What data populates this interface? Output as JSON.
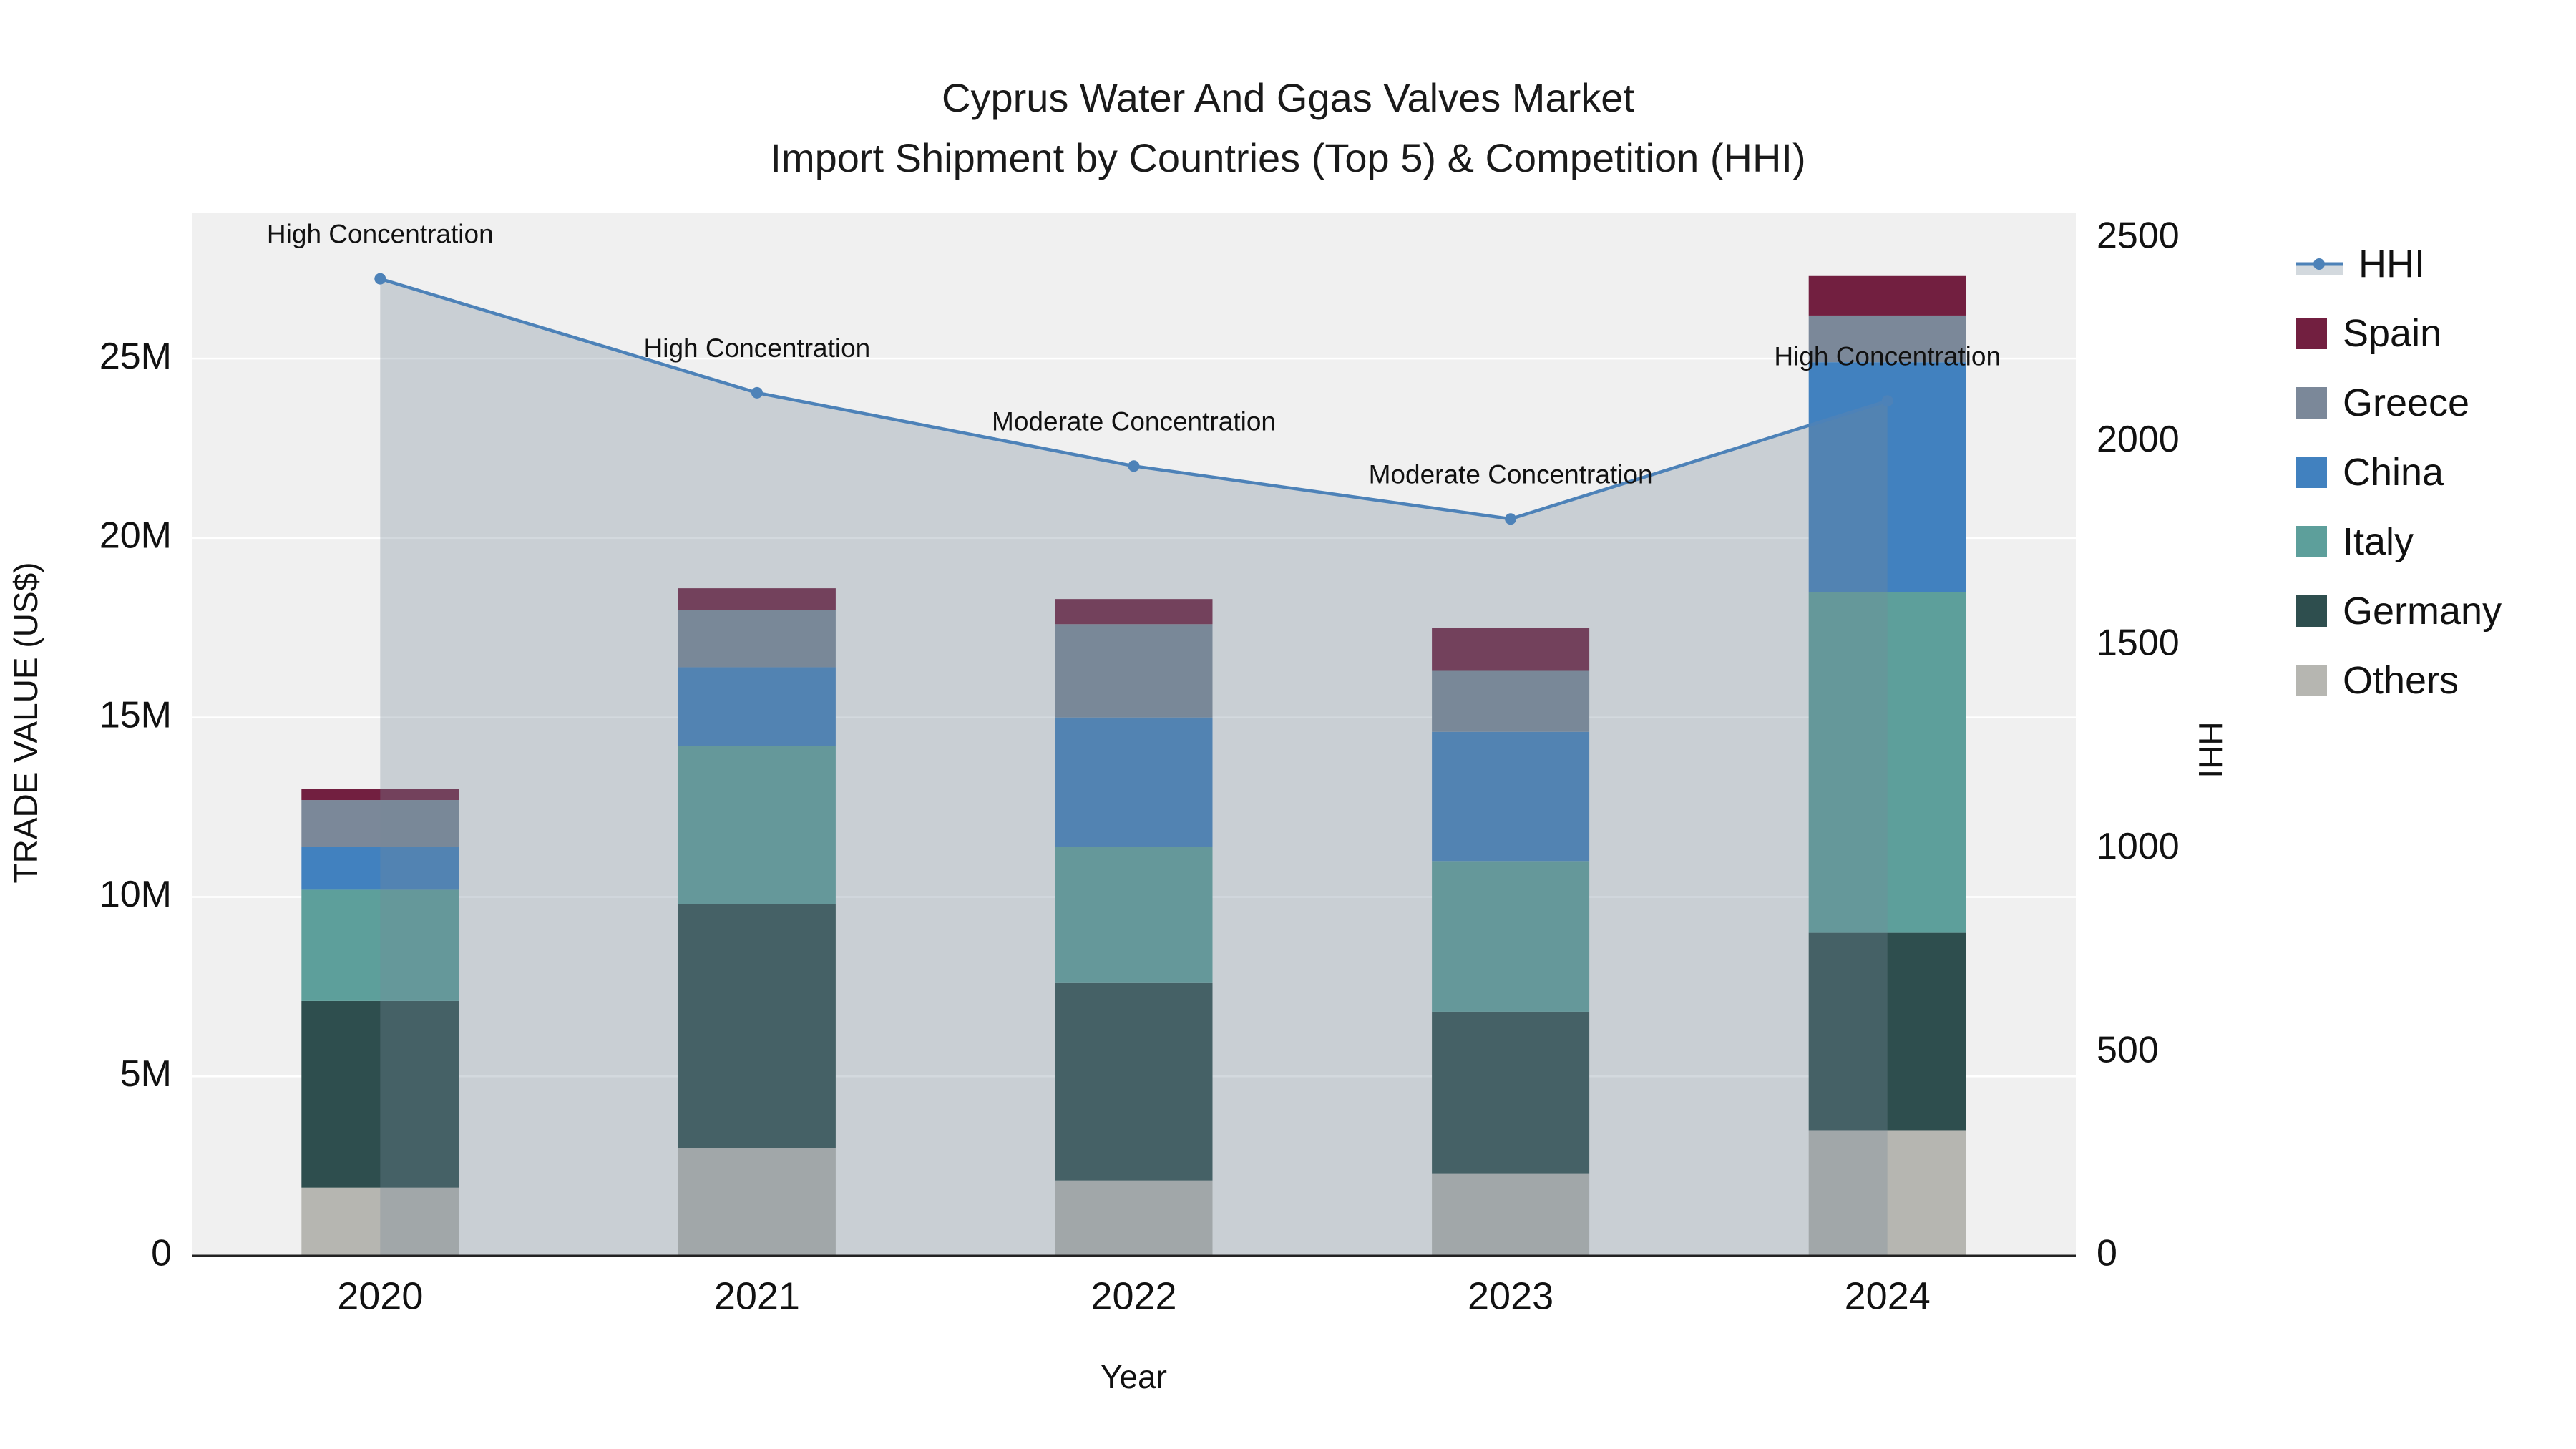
{
  "chart_data": {
    "type": "bar+line",
    "title_line1": "Cyprus Water And Ggas Valves Market",
    "title_line2": "Import Shipment by Countries (Top 5) & Competition (HHI)",
    "xlabel": "Year",
    "ylabel_left": "TRADE VALUE (US$)",
    "ylabel_right": "HHI",
    "categories": [
      "2020",
      "2021",
      "2022",
      "2023",
      "2024"
    ],
    "bar_unit": "millions US$",
    "bar_series": [
      {
        "name": "Others",
        "color": "#b6b6b1",
        "values": [
          1.9,
          3.0,
          2.1,
          2.3,
          3.5
        ]
      },
      {
        "name": "Germany",
        "color": "#2e4e4e",
        "values": [
          5.2,
          6.8,
          5.5,
          4.5,
          5.5
        ]
      },
      {
        "name": "Italy",
        "color": "#5d9f9b",
        "values": [
          3.1,
          4.4,
          3.8,
          4.2,
          9.5
        ]
      },
      {
        "name": "China",
        "color": "#4181bf",
        "values": [
          1.2,
          2.2,
          3.6,
          3.6,
          6.4
        ]
      },
      {
        "name": "Greece",
        "color": "#7b8899",
        "values": [
          1.3,
          1.6,
          2.6,
          1.7,
          1.3
        ]
      },
      {
        "name": "Spain",
        "color": "#721f40",
        "values": [
          0.3,
          0.6,
          0.7,
          1.2,
          1.1
        ]
      }
    ],
    "line_series": {
      "name": "HHI",
      "color": "#4d82b8",
      "fill": "rgba(119,136,153,0.32)",
      "values": [
        2400,
        2120,
        1940,
        1810,
        2100
      ]
    },
    "annotations": [
      "High Concentration",
      "High Concentration",
      "Moderate Concentration",
      "Moderate Concentration",
      "High Concentration"
    ],
    "axes": {
      "left_ticks": [
        "0",
        "5M",
        "10M",
        "15M",
        "20M",
        "25M"
      ],
      "left_tick_values": [
        0,
        5,
        10,
        15,
        20,
        25
      ],
      "left_range": [
        0,
        29.05
      ],
      "right_ticks": [
        "0",
        "500",
        "1000",
        "1500",
        "2000",
        "2500"
      ],
      "right_tick_values": [
        0,
        500,
        1000,
        1500,
        2000,
        2500
      ],
      "right_range": [
        0,
        2561
      ],
      "grid": true,
      "legend_position": "right"
    },
    "colors": {
      "plot_bg": "#f0f0f0",
      "grid": "#ffffff",
      "axis_line": "#222222",
      "text": "#111111"
    },
    "legend": [
      {
        "label": "HHI",
        "marker": "line",
        "color": "#4d82b8"
      },
      {
        "label": "Spain",
        "marker": "square",
        "color": "#721f40"
      },
      {
        "label": "Greece",
        "marker": "square",
        "color": "#7b8899"
      },
      {
        "label": "China",
        "marker": "square",
        "color": "#4181bf"
      },
      {
        "label": "Italy",
        "marker": "square",
        "color": "#5d9f9b"
      },
      {
        "label": "Germany",
        "marker": "square",
        "color": "#2e4e4e"
      },
      {
        "label": "Others",
        "marker": "square",
        "color": "#b6b6b1"
      }
    ]
  }
}
